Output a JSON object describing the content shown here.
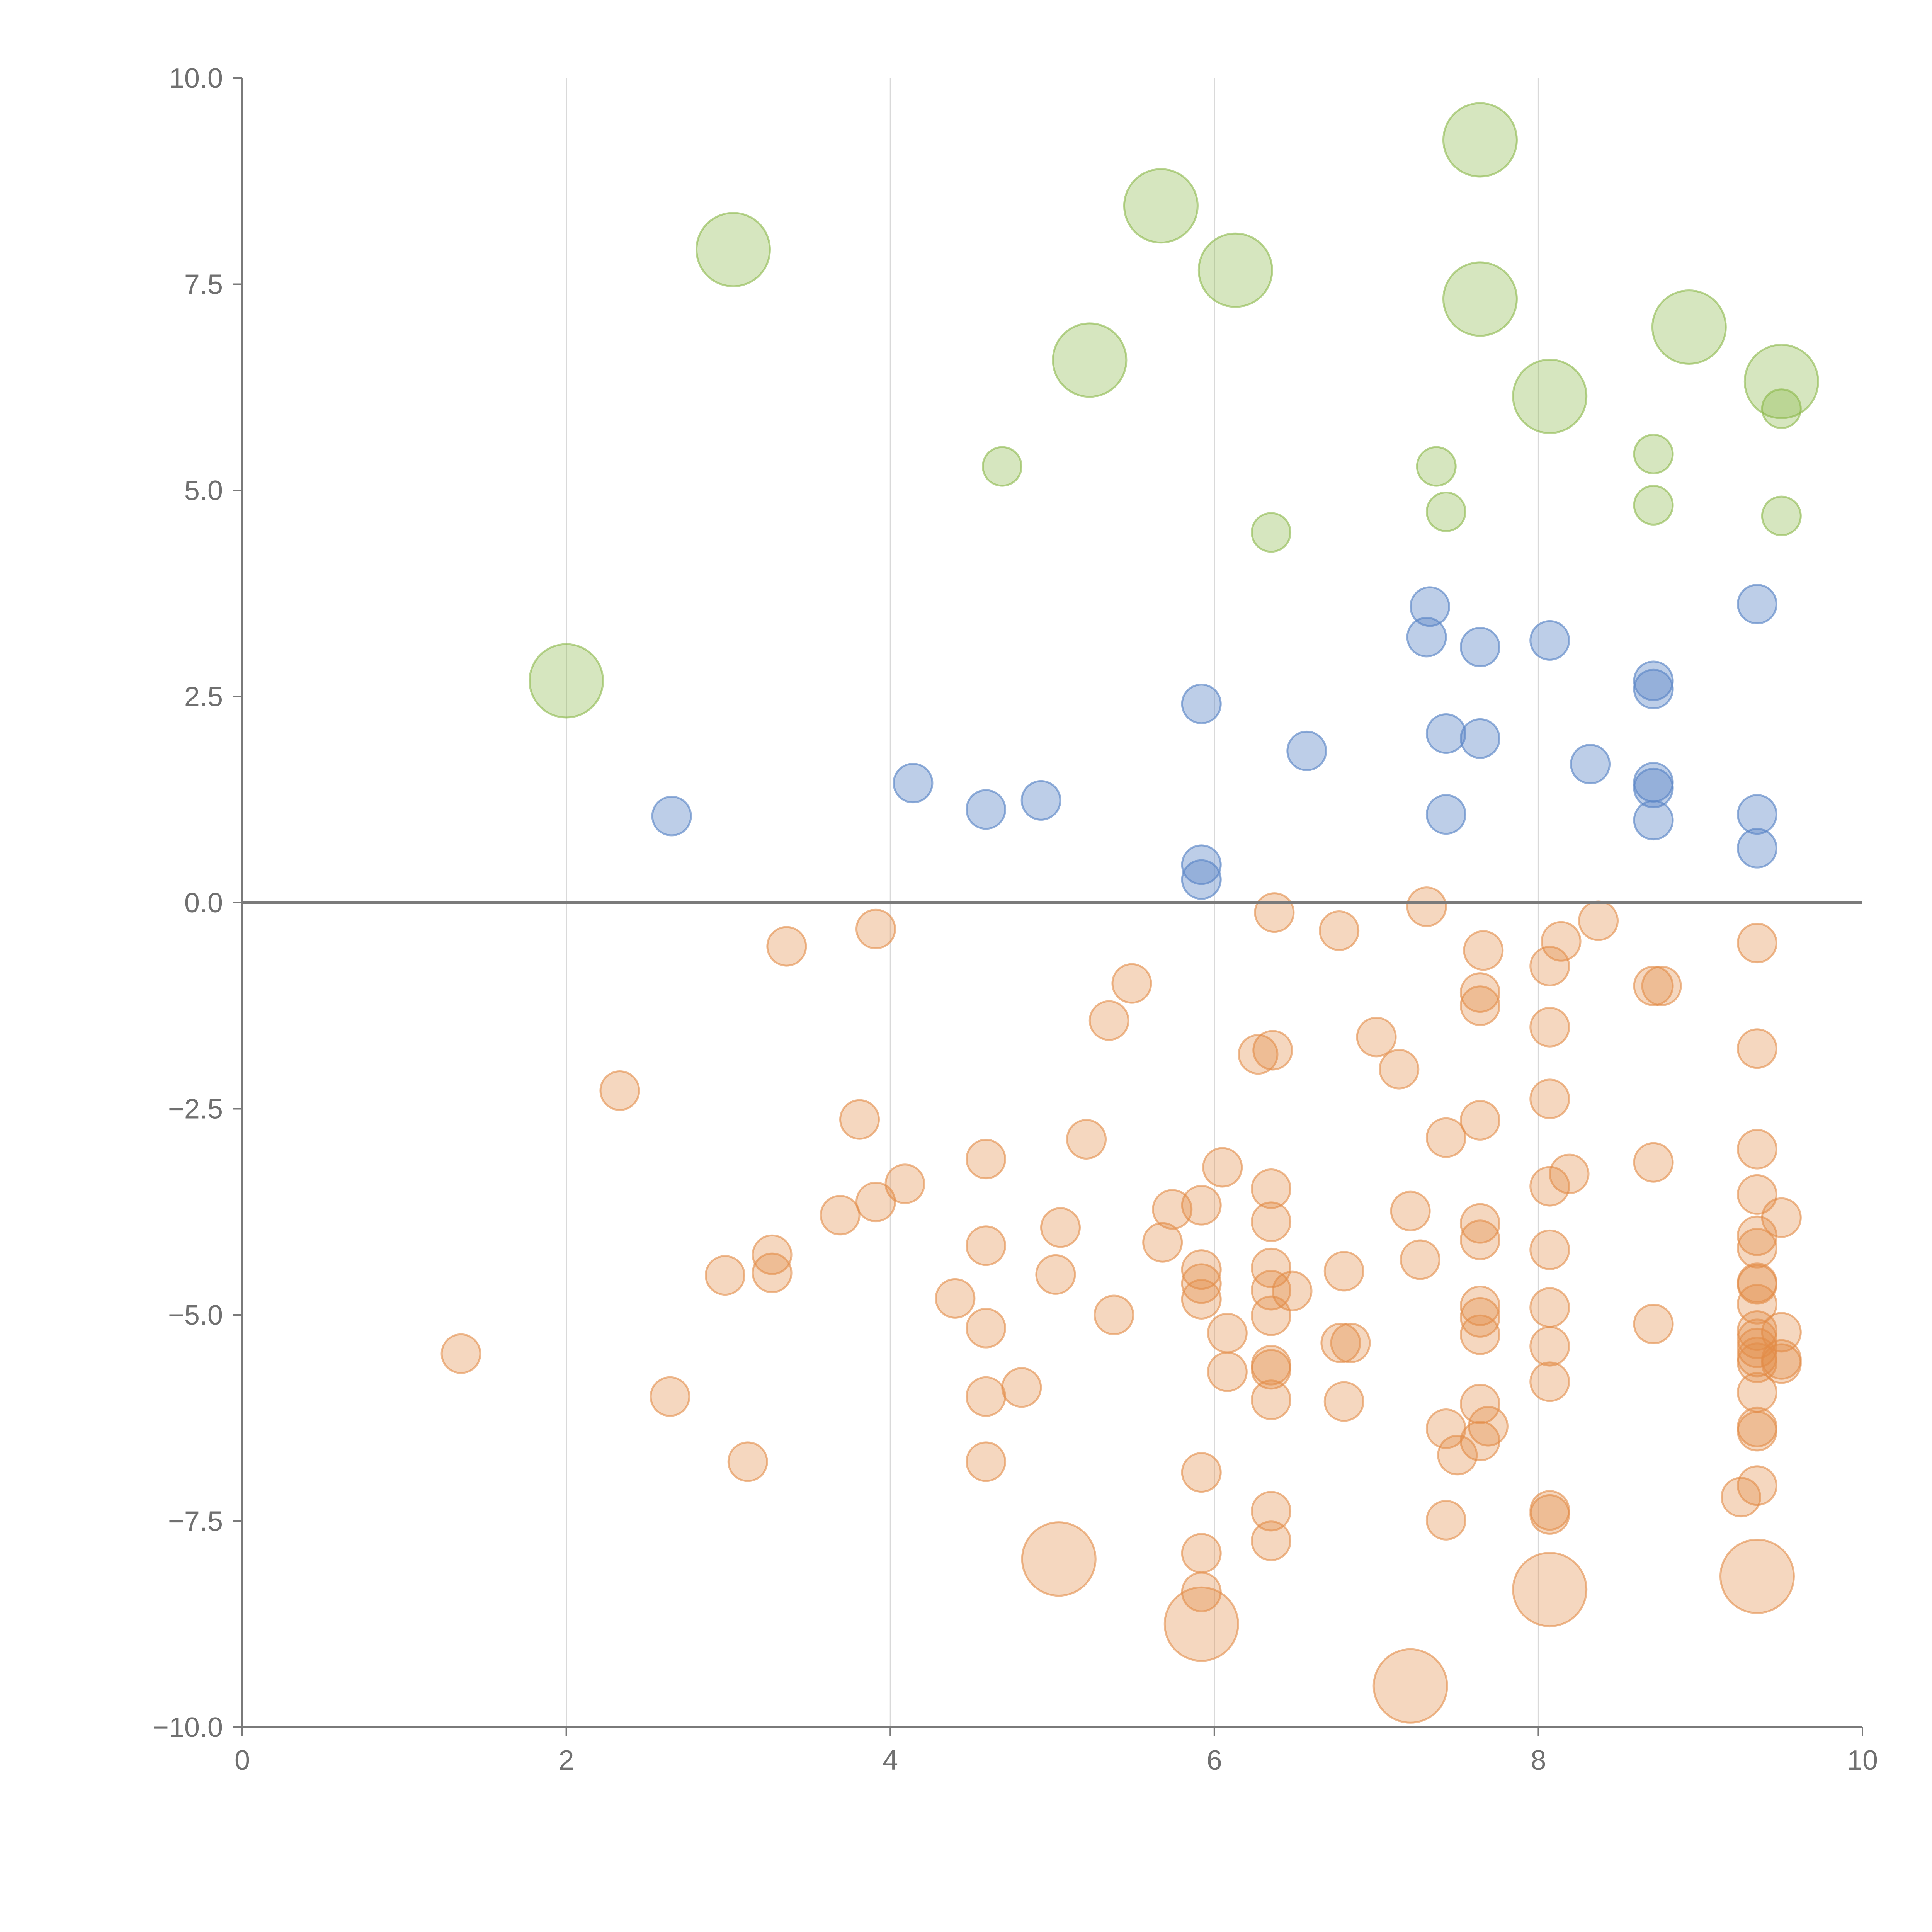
{
  "chart_data": {
    "type": "scatter",
    "title": "",
    "xlabel": "",
    "ylabel": "",
    "xlim": [
      0,
      10
    ],
    "ylim": [
      -10,
      10
    ],
    "grid": "vertical",
    "x_ticks": [
      0,
      2,
      4,
      6,
      8,
      10
    ],
    "x_tick_labels": [
      "0",
      "2",
      "4",
      "6",
      "8",
      "10"
    ],
    "y_ticks": [
      10,
      7.5,
      5,
      2.5,
      0,
      -2.5,
      -5,
      -7.5,
      -10
    ],
    "y_tick_labels": [
      "10.0",
      "7.5",
      "5.0",
      "2.5",
      "0.0",
      "−2.5",
      "−5.0",
      "−7.5",
      "−10.0"
    ],
    "series": [
      {
        "name": "green",
        "color": "#8ab849",
        "opacity": 0.35,
        "points": [
          [
            7.64,
            9.25,
            3
          ],
          [
            5.67,
            8.45,
            3
          ],
          [
            3.03,
            7.92,
            3
          ],
          [
            6.13,
            7.67,
            3
          ],
          [
            7.64,
            7.32,
            3
          ],
          [
            8.93,
            6.98,
            3
          ],
          [
            5.23,
            6.58,
            3
          ],
          [
            9.5,
            6.32,
            3
          ],
          [
            8.07,
            6.14,
            3
          ],
          [
            2.0,
            2.69,
            3
          ],
          [
            9.5,
            5.99,
            1
          ],
          [
            8.71,
            5.44,
            1
          ],
          [
            4.69,
            5.29,
            1
          ],
          [
            7.37,
            5.29,
            1
          ],
          [
            8.71,
            4.82,
            1
          ],
          [
            7.43,
            4.74,
            1
          ],
          [
            9.5,
            4.69,
            1
          ],
          [
            6.35,
            4.49,
            1
          ]
        ]
      },
      {
        "name": "blue",
        "color": "#5b85c6",
        "opacity": 0.4,
        "points": [
          [
            7.33,
            3.59,
            1
          ],
          [
            9.35,
            3.62,
            1
          ],
          [
            7.31,
            3.22,
            1
          ],
          [
            8.07,
            3.18,
            1
          ],
          [
            7.64,
            3.1,
            1
          ],
          [
            8.71,
            2.69,
            1
          ],
          [
            8.71,
            2.59,
            1
          ],
          [
            5.92,
            2.41,
            1
          ],
          [
            7.43,
            2.05,
            1
          ],
          [
            7.64,
            1.99,
            1
          ],
          [
            6.57,
            1.84,
            1
          ],
          [
            8.32,
            1.68,
            1
          ],
          [
            8.71,
            1.46,
            1
          ],
          [
            4.14,
            1.45,
            1
          ],
          [
            8.71,
            1.39,
            1
          ],
          [
            4.93,
            1.24,
            1
          ],
          [
            4.59,
            1.13,
            1
          ],
          [
            7.43,
            1.07,
            1
          ],
          [
            9.35,
            1.07,
            1
          ],
          [
            2.65,
            1.05,
            1
          ],
          [
            8.71,
            1.0,
            1
          ],
          [
            9.35,
            0.66,
            1
          ],
          [
            5.92,
            0.46,
            1
          ],
          [
            5.92,
            0.28,
            1
          ]
        ]
      },
      {
        "name": "orange",
        "color": "#e38c47",
        "opacity": 0.35,
        "points": [
          [
            6.37,
            -0.12,
            1
          ],
          [
            7.31,
            -0.05,
            1
          ],
          [
            8.37,
            -0.22,
            1
          ],
          [
            3.91,
            -0.32,
            1
          ],
          [
            6.77,
            -0.34,
            1
          ],
          [
            3.36,
            -0.53,
            1
          ],
          [
            9.35,
            -0.49,
            1
          ],
          [
            8.14,
            -0.47,
            1
          ],
          [
            7.66,
            -0.58,
            1
          ],
          [
            8.07,
            -0.77,
            1
          ],
          [
            5.49,
            -0.98,
            1
          ],
          [
            8.71,
            -1.01,
            1
          ],
          [
            8.76,
            -1.01,
            1
          ],
          [
            7.64,
            -1.09,
            1
          ],
          [
            7.64,
            -1.25,
            1
          ],
          [
            5.35,
            -1.43,
            1
          ],
          [
            8.07,
            -1.51,
            1
          ],
          [
            7.0,
            -1.63,
            1
          ],
          [
            9.35,
            -1.77,
            1
          ],
          [
            6.36,
            -1.79,
            1
          ],
          [
            6.27,
            -1.84,
            1
          ],
          [
            7.14,
            -2.02,
            1
          ],
          [
            2.33,
            -2.28,
            1
          ],
          [
            8.07,
            -2.38,
            1
          ],
          [
            3.81,
            -2.63,
            1
          ],
          [
            7.64,
            -2.64,
            1
          ],
          [
            7.43,
            -2.85,
            1
          ],
          [
            5.21,
            -2.87,
            1
          ],
          [
            9.35,
            -2.99,
            1
          ],
          [
            4.59,
            -3.11,
            1
          ],
          [
            8.71,
            -3.15,
            1
          ],
          [
            6.05,
            -3.21,
            1
          ],
          [
            8.19,
            -3.29,
            1
          ],
          [
            4.09,
            -3.41,
            1
          ],
          [
            8.07,
            -3.44,
            1
          ],
          [
            6.35,
            -3.47,
            1
          ],
          [
            9.35,
            -3.54,
            1
          ],
          [
            3.91,
            -3.63,
            1
          ],
          [
            5.92,
            -3.67,
            1
          ],
          [
            5.74,
            -3.72,
            1
          ],
          [
            7.21,
            -3.74,
            1
          ],
          [
            3.69,
            -3.79,
            1
          ],
          [
            9.5,
            -3.82,
            1
          ],
          [
            6.35,
            -3.87,
            1
          ],
          [
            7.64,
            -3.89,
            1
          ],
          [
            5.05,
            -3.94,
            1
          ],
          [
            9.35,
            -4.04,
            1
          ],
          [
            7.64,
            -4.09,
            1
          ],
          [
            5.68,
            -4.12,
            1
          ],
          [
            4.59,
            -4.16,
            1
          ],
          [
            9.35,
            -4.19,
            1
          ],
          [
            8.07,
            -4.21,
            1
          ],
          [
            3.27,
            -4.27,
            1
          ],
          [
            7.27,
            -4.33,
            1
          ],
          [
            6.35,
            -4.43,
            1
          ],
          [
            5.92,
            -4.45,
            1
          ],
          [
            6.8,
            -4.47,
            1
          ],
          [
            3.27,
            -4.49,
            1
          ],
          [
            5.02,
            -4.51,
            1
          ],
          [
            2.98,
            -4.52,
            1
          ],
          [
            9.35,
            -4.61,
            1
          ],
          [
            5.92,
            -4.62,
            1
          ],
          [
            9.35,
            -4.63,
            1
          ],
          [
            6.35,
            -4.7,
            1
          ],
          [
            6.48,
            -4.71,
            1
          ],
          [
            4.4,
            -4.8,
            1
          ],
          [
            5.92,
            -4.81,
            1
          ],
          [
            9.35,
            -4.87,
            1
          ],
          [
            7.64,
            -4.89,
            1
          ],
          [
            8.07,
            -4.91,
            1
          ],
          [
            5.38,
            -5.0,
            1
          ],
          [
            6.35,
            -5.01,
            1
          ],
          [
            7.64,
            -5.03,
            1
          ],
          [
            8.71,
            -5.11,
            1
          ],
          [
            4.59,
            -5.16,
            1
          ],
          [
            9.35,
            -5.19,
            1
          ],
          [
            9.5,
            -5.21,
            1
          ],
          [
            6.08,
            -5.22,
            1
          ],
          [
            7.64,
            -5.24,
            1
          ],
          [
            9.35,
            -5.29,
            1
          ],
          [
            6.78,
            -5.34,
            1
          ],
          [
            6.84,
            -5.34,
            1
          ],
          [
            8.07,
            -5.38,
            1
          ],
          [
            9.35,
            -5.4,
            1
          ],
          [
            1.35,
            -5.47,
            1
          ],
          [
            9.35,
            -5.51,
            1
          ],
          [
            9.5,
            -5.54,
            1
          ],
          [
            9.35,
            -5.58,
            1
          ],
          [
            9.5,
            -5.59,
            1
          ],
          [
            6.35,
            -5.61,
            1
          ],
          [
            6.35,
            -5.66,
            1
          ],
          [
            6.08,
            -5.69,
            1
          ],
          [
            8.07,
            -5.81,
            1
          ],
          [
            4.81,
            -5.88,
            1
          ],
          [
            9.35,
            -5.94,
            1
          ],
          [
            4.59,
            -5.99,
            1
          ],
          [
            2.64,
            -5.99,
            1
          ],
          [
            6.35,
            -6.03,
            1
          ],
          [
            6.8,
            -6.05,
            1
          ],
          [
            7.64,
            -6.08,
            1
          ],
          [
            7.69,
            -6.35,
            1
          ],
          [
            9.35,
            -6.36,
            1
          ],
          [
            7.43,
            -6.38,
            1
          ],
          [
            9.35,
            -6.41,
            1
          ],
          [
            7.64,
            -6.53,
            1
          ],
          [
            7.5,
            -6.7,
            1
          ],
          [
            4.59,
            -6.78,
            1
          ],
          [
            3.12,
            -6.78,
            1
          ],
          [
            5.92,
            -6.91,
            1
          ],
          [
            9.35,
            -7.07,
            1
          ],
          [
            9.25,
            -7.21,
            1
          ],
          [
            8.07,
            -7.37,
            1
          ],
          [
            6.35,
            -7.38,
            1
          ],
          [
            8.07,
            -7.42,
            1
          ],
          [
            7.43,
            -7.49,
            1
          ],
          [
            6.35,
            -7.74,
            1
          ],
          [
            5.92,
            -7.89,
            1
          ],
          [
            5.92,
            -8.36,
            1
          ],
          [
            5.04,
            -7.96,
            3
          ],
          [
            9.35,
            -8.17,
            3
          ],
          [
            8.07,
            -8.33,
            3
          ],
          [
            5.92,
            -8.75,
            3
          ],
          [
            7.21,
            -9.5,
            3
          ]
        ]
      }
    ]
  }
}
